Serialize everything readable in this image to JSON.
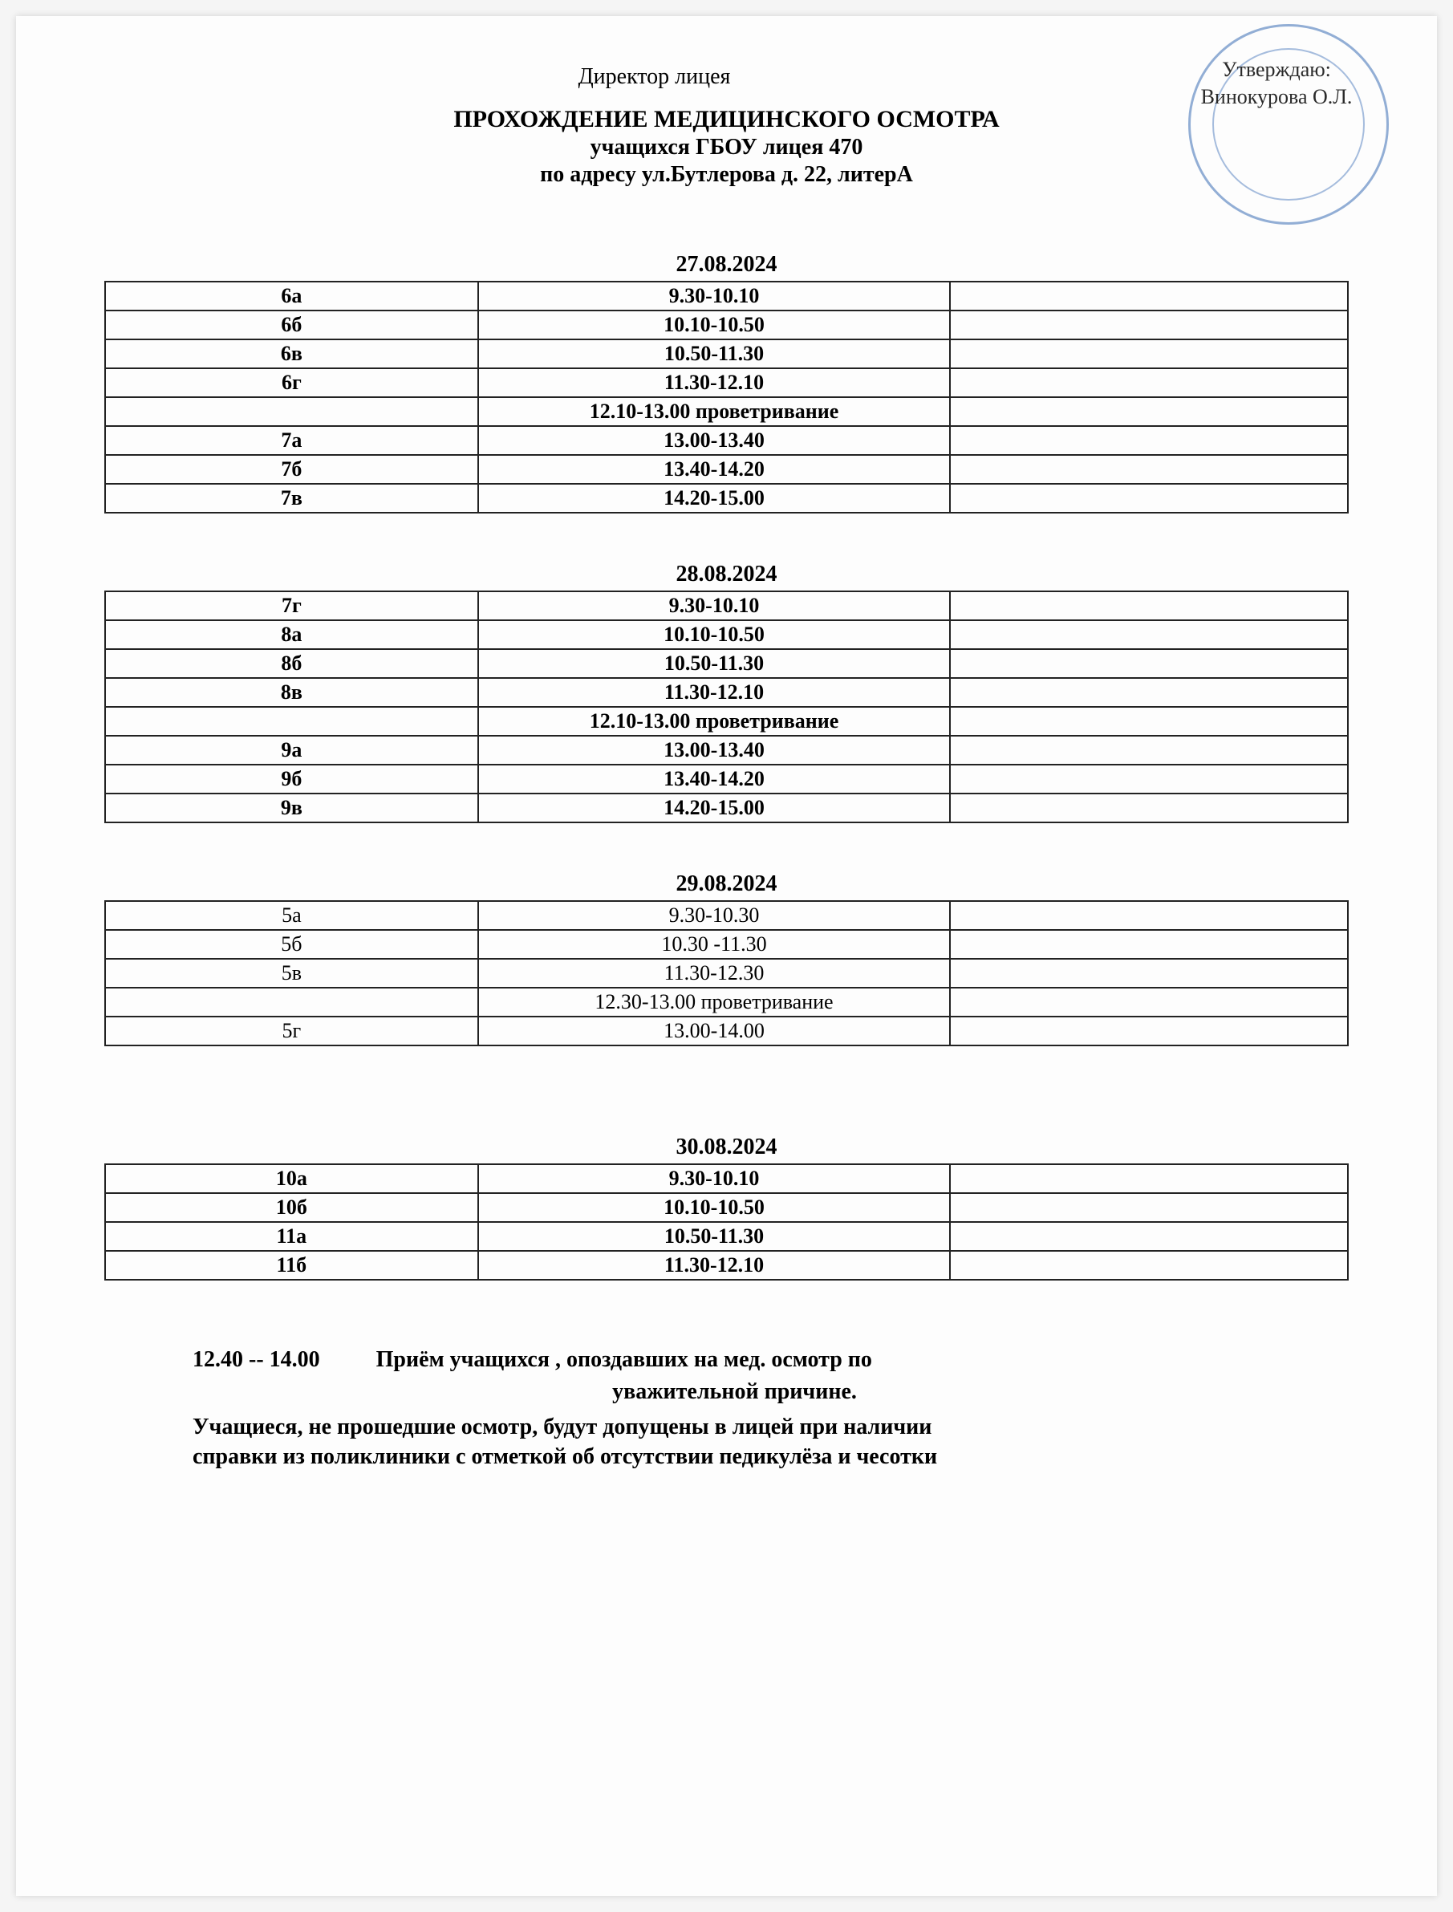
{
  "header": {
    "director_label": "Директор лицея",
    "approve_line1": "Утверждаю:",
    "approve_line2": "Винокурова О.Л.",
    "title_main": "ПРОХОЖДЕНИЕ МЕДИЦИНСКОГО ОСМОТРА",
    "title_sub1": "учащихся ГБОУ лицея 470",
    "title_sub2": "по адресу ул.Бутлерова д. 22, литерА"
  },
  "stamp": {
    "border_color": "#3a6db5"
  },
  "schedules": [
    {
      "date": "27.08.2024",
      "bold": true,
      "rows": [
        {
          "class": "6а",
          "time": "9.30-10.10",
          "note": ""
        },
        {
          "class": "6б",
          "time": "10.10-10.50",
          "note": ""
        },
        {
          "class": "6в",
          "time": "10.50-11.30",
          "note": ""
        },
        {
          "class": "6г",
          "time": "11.30-12.10",
          "note": ""
        },
        {
          "class": "",
          "time": "12.10-13.00 проветривание",
          "note": ""
        },
        {
          "class": "7а",
          "time": "13.00-13.40",
          "note": ""
        },
        {
          "class": "7б",
          "time": "13.40-14.20",
          "note": ""
        },
        {
          "class": "7в",
          "time": "14.20-15.00",
          "note": ""
        }
      ]
    },
    {
      "date": "28.08.2024",
      "bold": true,
      "rows": [
        {
          "class": "7г",
          "time": "9.30-10.10",
          "note": ""
        },
        {
          "class": "8а",
          "time": "10.10-10.50",
          "note": ""
        },
        {
          "class": "8б",
          "time": "10.50-11.30",
          "note": ""
        },
        {
          "class": "8в",
          "time": "11.30-12.10",
          "note": ""
        },
        {
          "class": "",
          "time": "12.10-13.00 проветривание",
          "note": ""
        },
        {
          "class": "9а",
          "time": "13.00-13.40",
          "note": ""
        },
        {
          "class": "9б",
          "time": "13.40-14.20",
          "note": ""
        },
        {
          "class": "9в",
          "time": "14.20-15.00",
          "note": ""
        }
      ]
    },
    {
      "date": "29.08.2024",
      "bold": false,
      "rows": [
        {
          "class": "5а",
          "time": "9.30-10.30",
          "note": ""
        },
        {
          "class": "5б",
          "time": "10.30 -11.30",
          "note": ""
        },
        {
          "class": "5в",
          "time": "11.30-12.30",
          "note": ""
        },
        {
          "class": "",
          "time": "12.30-13.00 проветривание",
          "note": ""
        },
        {
          "class": "5г",
          "time": "13.00-14.00",
          "note": ""
        }
      ]
    },
    {
      "date": "30.08.2024",
      "bold": true,
      "rows": [
        {
          "class": "10а",
          "time": "9.30-10.10",
          "note": ""
        },
        {
          "class": "10б",
          "time": "10.10-10.50",
          "note": ""
        },
        {
          "class": "11а",
          "time": "10.50-11.30",
          "note": ""
        },
        {
          "class": "11б",
          "time": "11.30-12.10",
          "note": ""
        }
      ]
    }
  ],
  "footer": {
    "time_range": "12.40 --  14.00",
    "line1": "Приём учащихся , опоздавших  на мед. осмотр по",
    "line2": "уважительной причине.",
    "line3": "Учащиеся, не прошедшие осмотр, будут допущены в лицей при наличии",
    "line4": "справки из поликлиники с отметкой об отсутствии педикулёза и чесотки"
  }
}
